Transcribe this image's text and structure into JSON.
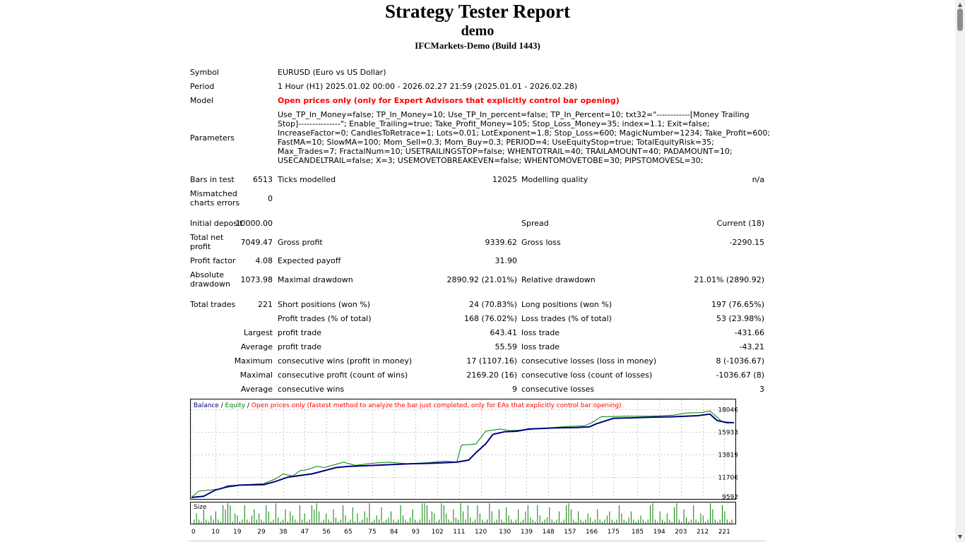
{
  "header": {
    "title": "Strategy Tester Report",
    "account": "demo",
    "server": "IFCMarkets-Demo (Build 1443)"
  },
  "info": {
    "symbol_label": "Symbol",
    "symbol_value": "EURUSD (Euro vs US Dollar)",
    "period_label": "Period",
    "period_value": "1 Hour (H1) 2025.01.02 00:00 - 2026.02.27 21:59 (2025.01.01 - 2026.02.28)",
    "model_label": "Model",
    "model_value": "Open prices only (only for Expert Advisors that explicitly control bar opening)",
    "parameters_label": "Parameters",
    "parameters_value": "Use_TP_In_Money=false; TP_In_Money=10; Use_TP_In_percent=false; TP_In_Percent=10; txt32=\"------------[Money Trailing Stop]---------------\"; Enable_Trailing=true; Take_Profit_Money=105; Stop_Loss_Money=35; index=1.1; Exit=false; IncreaseFactor=0; CandlesToRetrace=1; Lots=0.01; LotExponent=1.8; Stop_Loss=600; MagicNumber=1234; Take_Profit=600; FastMA=10; SlowMA=100; Mom_Sell=0.3; Mom_Buy=0.3; PERIOD=4; UseEquityStop=true; TotalEquityRisk=35; Max_Trades=7; FractalNum=10; USETRAILINGSTOP=false; WHENTOTRAIL=40; TRAILAMOUNT=40; PADAMOUNT=10; USECANDELTRAIL=false; X=3; USEMOVETOBREAKEVEN=false; WHENTOMOVETOBE=30; PIPSTOMOVESL=30;"
  },
  "stats": {
    "bars_label": "Bars in test",
    "bars_value": "6513",
    "ticks_label": "Ticks modelled",
    "ticks_value": "12025",
    "quality_label": "Modelling quality",
    "quality_value": "n/a",
    "mismatch_label_1": "Mismatched",
    "mismatch_label_2": "charts errors",
    "mismatch_value": "0",
    "deposit_label": "Initial deposit",
    "deposit_value": "10000.00",
    "spread_label": "Spread",
    "spread_value": "Current (18)",
    "netprofit_label_1": "Total net",
    "netprofit_label_2": "profit",
    "netprofit_value": "7049.47",
    "grossprofit_label": "Gross profit",
    "grossprofit_value": "9339.62",
    "grossloss_label": "Gross loss",
    "grossloss_value": "-2290.15",
    "pf_label": "Profit factor",
    "pf_value": "4.08",
    "payoff_label": "Expected payoff",
    "payoff_value": "31.90",
    "absdd_label_1": "Absolute",
    "absdd_label_2": "drawdown",
    "absdd_value": "1073.98",
    "maxdd_label": "Maximal drawdown",
    "maxdd_value": "2890.92 (21.01%)",
    "reldd_label": "Relative drawdown",
    "reldd_value": "21.01% (2890.92)",
    "trades_label": "Total trades",
    "trades_value": "221",
    "short_label": "Short positions (won %)",
    "short_value": "24 (70.83%)",
    "long_label": "Long positions (won %)",
    "long_value": "197 (76.65%)",
    "profittrades_label": "Profit trades (% of total)",
    "profittrades_value": "168 (76.02%)",
    "losstrades_label": "Loss trades (% of total)",
    "losstrades_value": "53 (23.98%)",
    "largest_label": "Largest",
    "largest_profit_label": "profit trade",
    "largest_profit_value": "643.41",
    "largest_loss_label": "loss trade",
    "largest_loss_value": "-431.66",
    "average_label": "Average",
    "average_profit_label": "profit trade",
    "average_profit_value": "55.59",
    "average_loss_label": "loss trade",
    "average_loss_value": "-43.21",
    "maximum_label": "Maximum",
    "max_wins_label": "consecutive wins (profit in money)",
    "max_wins_value": "17 (1107.16)",
    "max_losses_label": "consecutive losses (loss in money)",
    "max_losses_value": "8 (-1036.67)",
    "maximal_label": "Maximal",
    "maximal_profit_label": "consecutive profit (count of wins)",
    "maximal_profit_value": "2169.20 (16)",
    "maximal_loss_label": "consecutive loss (count of losses)",
    "maximal_loss_value": "-1036.67 (8)",
    "avg_cons_label": "Average",
    "avg_wins_label": "consecutive wins",
    "avg_wins_value": "9",
    "avg_losses_label": "consecutive losses",
    "avg_losses_value": "3"
  },
  "chart_data": {
    "type": "line",
    "legend": {
      "balance": "Balance",
      "equity": "Equity",
      "sep": " / ",
      "note": "Open prices only (fastest method to analyze the bar just completed, only for EAs that explicitly control bar opening)"
    },
    "size_label": "Size",
    "y_ticks": [
      "18046",
      "15933",
      "13819",
      "11706",
      "9592"
    ],
    "ylim": [
      9592,
      18046
    ],
    "x_ticks": [
      "0",
      "10",
      "19",
      "29",
      "38",
      "47",
      "56",
      "65",
      "75",
      "84",
      "93",
      "102",
      "111",
      "120",
      "130",
      "139",
      "148",
      "157",
      "166",
      "175",
      "185",
      "194",
      "203",
      "212",
      "221"
    ],
    "xlim": [
      0,
      225
    ],
    "colors": {
      "balance": "#000080",
      "equity": "#008000",
      "note": "#ff0000",
      "size": "#008000"
    },
    "balance": [
      [
        0,
        9800
      ],
      [
        5,
        9900
      ],
      [
        10,
        10500
      ],
      [
        15,
        10800
      ],
      [
        20,
        10950
      ],
      [
        30,
        11000
      ],
      [
        35,
        11300
      ],
      [
        40,
        11700
      ],
      [
        45,
        11850
      ],
      [
        50,
        12000
      ],
      [
        55,
        12300
      ],
      [
        60,
        12600
      ],
      [
        65,
        12700
      ],
      [
        70,
        12750
      ],
      [
        80,
        12850
      ],
      [
        90,
        12950
      ],
      [
        100,
        13000
      ],
      [
        110,
        13100
      ],
      [
        115,
        13300
      ],
      [
        118,
        14000
      ],
      [
        122,
        14800
      ],
      [
        125,
        15700
      ],
      [
        130,
        15950
      ],
      [
        135,
        16000
      ],
      [
        140,
        16200
      ],
      [
        150,
        16300
      ],
      [
        160,
        16350
      ],
      [
        165,
        16400
      ],
      [
        168,
        16700
      ],
      [
        175,
        17200
      ],
      [
        190,
        17300
      ],
      [
        200,
        17350
      ],
      [
        210,
        17450
      ],
      [
        215,
        17600
      ],
      [
        218,
        17000
      ],
      [
        222,
        16800
      ],
      [
        225,
        16800
      ]
    ],
    "equity": [
      [
        0,
        9800
      ],
      [
        3,
        10400
      ],
      [
        8,
        10500
      ],
      [
        12,
        10600
      ],
      [
        15,
        10900
      ],
      [
        30,
        11100
      ],
      [
        35,
        11550
      ],
      [
        38,
        12000
      ],
      [
        42,
        11800
      ],
      [
        45,
        12300
      ],
      [
        48,
        12400
      ],
      [
        52,
        12700
      ],
      [
        55,
        12600
      ],
      [
        60,
        12900
      ],
      [
        63,
        13100
      ],
      [
        68,
        12800
      ],
      [
        75,
        13000
      ],
      [
        82,
        13100
      ],
      [
        90,
        12950
      ],
      [
        98,
        13050
      ],
      [
        105,
        13200
      ],
      [
        110,
        13100
      ],
      [
        112,
        14700
      ],
      [
        118,
        14800
      ],
      [
        122,
        16000
      ],
      [
        128,
        16200
      ],
      [
        132,
        16050
      ],
      [
        140,
        16150
      ],
      [
        148,
        16300
      ],
      [
        156,
        16450
      ],
      [
        163,
        16500
      ],
      [
        166,
        16800
      ],
      [
        170,
        17350
      ],
      [
        180,
        17400
      ],
      [
        190,
        17400
      ],
      [
        200,
        17500
      ],
      [
        205,
        17700
      ],
      [
        212,
        17750
      ],
      [
        215,
        17900
      ],
      [
        220,
        16900
      ],
      [
        225,
        16800
      ]
    ],
    "sizes": [
      0,
      2,
      5,
      2,
      1,
      7,
      2,
      1,
      4,
      2,
      6,
      2,
      1,
      9,
      7,
      10,
      9,
      1,
      5,
      4,
      1,
      2,
      9,
      2,
      1,
      4,
      7,
      2,
      5,
      2,
      1,
      9,
      6,
      1,
      2,
      10,
      3,
      1,
      2,
      7,
      1,
      6,
      4,
      2,
      1,
      9,
      2,
      5,
      1,
      2,
      9,
      7,
      10,
      6,
      1,
      2,
      5,
      2,
      1,
      7,
      3,
      1,
      2,
      9,
      4,
      1,
      2,
      8,
      1,
      5,
      1,
      2,
      6,
      3,
      10,
      1,
      2,
      4,
      2,
      8,
      1,
      2,
      3,
      6,
      2,
      1,
      2,
      9,
      4,
      2,
      1,
      3,
      7,
      2,
      1,
      2,
      10,
      10,
      9,
      2,
      6,
      5,
      1,
      2,
      10,
      9,
      5,
      2,
      1,
      7,
      3,
      2,
      10,
      6,
      2,
      9,
      3,
      1,
      2,
      9,
      5,
      2,
      1,
      2,
      10,
      6,
      1,
      2,
      7,
      2,
      1,
      8,
      4,
      2,
      1,
      2,
      7,
      1,
      2,
      6,
      9,
      3,
      2,
      1,
      9,
      4,
      1,
      2,
      3,
      8,
      2,
      1,
      2,
      6,
      1,
      2,
      9,
      10,
      7,
      2,
      1,
      6,
      2,
      1,
      2,
      5,
      3,
      1,
      2,
      7,
      2,
      1,
      2,
      4,
      6,
      2,
      1,
      2,
      9,
      5,
      2,
      1,
      3,
      6,
      2,
      1,
      2,
      4,
      2,
      1,
      2,
      9,
      10,
      2,
      1,
      6,
      2,
      1,
      5,
      2,
      1,
      8,
      10,
      2,
      1,
      7,
      3,
      1,
      2,
      9,
      2,
      1,
      5,
      4,
      1,
      2,
      10,
      7,
      2,
      1,
      2,
      9,
      6,
      2,
      1,
      2
    ]
  },
  "scrollbar": {
    "up": "▲",
    "down": "▼"
  }
}
